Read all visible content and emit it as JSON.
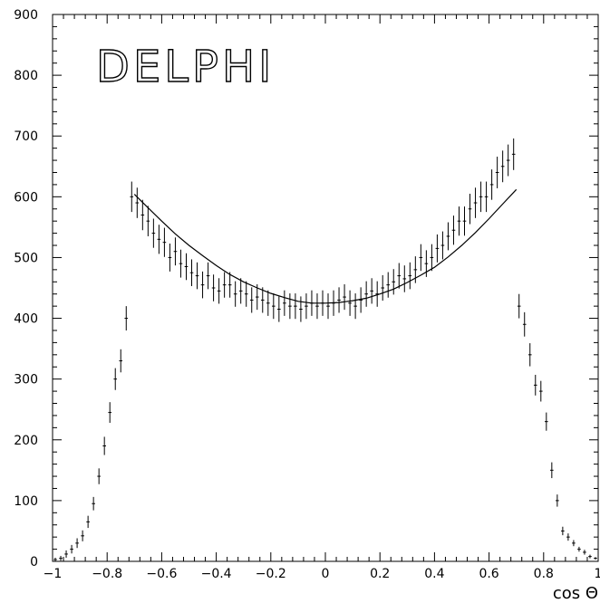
{
  "chart_data": {
    "type": "scatter",
    "title": "",
    "logo_text": "DELPHI",
    "xlabel": "cos Θ",
    "ylabel": "",
    "xlim": [
      -1,
      1
    ],
    "ylim": [
      0,
      900
    ],
    "grid": false,
    "x_ticks": [
      {
        "value": -1,
        "label": "−1"
      },
      {
        "value": -0.8,
        "label": "−0.8"
      },
      {
        "value": -0.6,
        "label": "−0.6"
      },
      {
        "value": -0.4,
        "label": "−0.4"
      },
      {
        "value": -0.2,
        "label": "−0.2"
      },
      {
        "value": 0,
        "label": "0"
      },
      {
        "value": 0.2,
        "label": "0.2"
      },
      {
        "value": 0.4,
        "label": "0.4"
      },
      {
        "value": 0.6,
        "label": "0.6"
      },
      {
        "value": 0.8,
        "label": "0.8"
      },
      {
        "value": 1,
        "label": "1"
      }
    ],
    "y_ticks": [
      {
        "value": 0,
        "label": "0"
      },
      {
        "value": 100,
        "label": "100"
      },
      {
        "value": 200,
        "label": "200"
      },
      {
        "value": 300,
        "label": "300"
      },
      {
        "value": 400,
        "label": "400"
      },
      {
        "value": 500,
        "label": "500"
      },
      {
        "value": 600,
        "label": "600"
      },
      {
        "value": 700,
        "label": "700"
      },
      {
        "value": 800,
        "label": "800"
      },
      {
        "value": 900,
        "label": "900"
      }
    ],
    "series": [
      {
        "kind": "points_with_errors",
        "x": [
          -0.99,
          -0.97,
          -0.95,
          -0.93,
          -0.91,
          -0.89,
          -0.87,
          -0.85,
          -0.83,
          -0.81,
          -0.79,
          -0.77,
          -0.75,
          -0.73,
          -0.71,
          -0.69,
          -0.67,
          -0.65,
          -0.63,
          -0.61,
          -0.59,
          -0.57,
          -0.55,
          -0.53,
          -0.51,
          -0.49,
          -0.47,
          -0.45,
          -0.43,
          -0.41,
          -0.39,
          -0.37,
          -0.35,
          -0.33,
          -0.31,
          -0.29,
          -0.27,
          -0.25,
          -0.23,
          -0.21,
          -0.19,
          -0.17,
          -0.15,
          -0.13,
          -0.11,
          -0.09,
          -0.07,
          -0.05,
          -0.03,
          -0.01,
          0.01,
          0.03,
          0.05,
          0.07,
          0.09,
          0.11,
          0.13,
          0.15,
          0.17,
          0.19,
          0.21,
          0.23,
          0.25,
          0.27,
          0.29,
          0.31,
          0.33,
          0.35,
          0.37,
          0.39,
          0.41,
          0.43,
          0.45,
          0.47,
          0.49,
          0.51,
          0.53,
          0.55,
          0.57,
          0.59,
          0.61,
          0.63,
          0.65,
          0.67,
          0.69,
          0.71,
          0.73,
          0.75,
          0.77,
          0.79,
          0.81,
          0.83,
          0.85,
          0.87,
          0.89,
          0.91,
          0.93,
          0.95,
          0.97,
          0.99
        ],
        "y": [
          3,
          5,
          12,
          20,
          30,
          42,
          65,
          95,
          140,
          190,
          245,
          300,
          330,
          400,
          600,
          590,
          570,
          560,
          540,
          530,
          525,
          500,
          510,
          490,
          485,
          475,
          470,
          455,
          470,
          450,
          445,
          455,
          455,
          440,
          445,
          440,
          430,
          435,
          430,
          425,
          420,
          415,
          425,
          420,
          420,
          415,
          420,
          425,
          420,
          425,
          420,
          425,
          430,
          435,
          425,
          420,
          430,
          440,
          445,
          440,
          450,
          455,
          460,
          470,
          465,
          470,
          480,
          500,
          490,
          500,
          515,
          520,
          535,
          545,
          560,
          560,
          580,
          590,
          600,
          600,
          620,
          640,
          650,
          660,
          670,
          420,
          390,
          340,
          290,
          280,
          230,
          150,
          100,
          50,
          40,
          30,
          20,
          15,
          8,
          5
        ],
        "err": [
          3,
          4,
          6,
          7,
          8,
          9,
          10,
          11,
          13,
          15,
          17,
          18,
          19,
          20,
          25,
          25,
          25,
          25,
          24,
          24,
          24,
          23,
          23,
          23,
          22,
          22,
          22,
          22,
          22,
          22,
          21,
          21,
          21,
          21,
          21,
          21,
          21,
          21,
          21,
          21,
          21,
          21,
          21,
          21,
          21,
          21,
          21,
          21,
          21,
          21,
          21,
          21,
          21,
          21,
          21,
          21,
          21,
          21,
          21,
          21,
          21,
          21,
          21,
          21,
          22,
          22,
          22,
          22,
          22,
          22,
          23,
          23,
          23,
          24,
          24,
          24,
          25,
          25,
          25,
          25,
          25,
          26,
          26,
          26,
          26,
          20,
          20,
          19,
          17,
          17,
          15,
          13,
          10,
          7,
          6,
          5,
          4,
          4,
          3,
          2
        ]
      },
      {
        "kind": "fit_curve",
        "x": [
          -0.7,
          -0.65,
          -0.6,
          -0.55,
          -0.5,
          -0.45,
          -0.4,
          -0.35,
          -0.3,
          -0.25,
          -0.2,
          -0.15,
          -0.1,
          -0.05,
          0.0,
          0.05,
          0.1,
          0.15,
          0.2,
          0.25,
          0.3,
          0.35,
          0.4,
          0.45,
          0.5,
          0.55,
          0.6,
          0.65,
          0.7
        ],
        "y": [
          604,
          582,
          560,
          539,
          520,
          503,
          487,
          472,
          460,
          450,
          441,
          434,
          428,
          425,
          425,
          426,
          429,
          433,
          440,
          448,
          459,
          471,
          484,
          501,
          520,
          541,
          564,
          588,
          612
        ]
      }
    ]
  }
}
